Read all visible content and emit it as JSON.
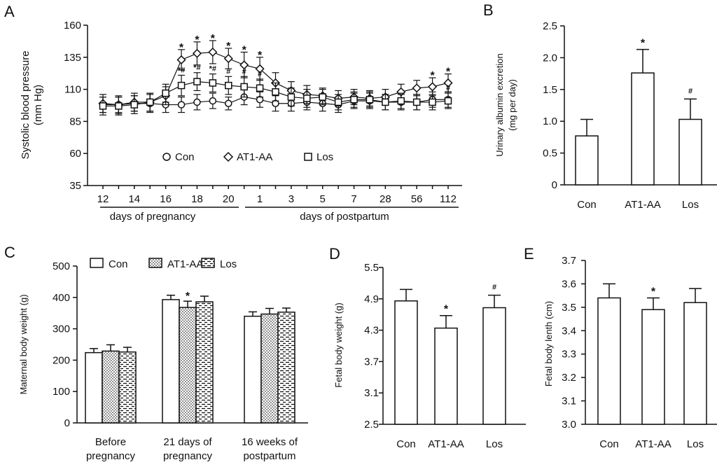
{
  "chart_data": [
    {
      "panel": "A",
      "type": "line",
      "ylabel": "Systolic blood pressure (mm Hg)",
      "ylabel_lines": [
        "Systolic blood pressure",
        "(mm Hg)"
      ],
      "ylim": [
        35,
        160
      ],
      "yticks": [
        35,
        60,
        85,
        110,
        135,
        160
      ],
      "categories": [
        "12",
        "13",
        "14",
        "15",
        "16",
        "17",
        "18",
        "19",
        "20",
        "21",
        "1",
        "2",
        "3",
        "4",
        "5",
        "6",
        "7",
        "14",
        "28",
        "42",
        "56",
        "84",
        "112"
      ],
      "tick_labels": [
        "12",
        "14",
        "16",
        "18",
        "20",
        "1",
        "3",
        "5",
        "7",
        "28",
        "56",
        "112"
      ],
      "group_labels": [
        "days of pregnancy",
        "days of postpartum"
      ],
      "series": [
        {
          "name": "Con",
          "marker": "circle",
          "values": [
            98,
            98,
            99,
            99,
            98,
            98,
            100,
            101,
            99,
            104,
            102,
            99,
            99,
            100,
            99,
            98,
            101,
            101,
            100,
            100,
            100,
            102,
            102
          ],
          "errors": [
            6,
            6,
            6,
            7,
            6,
            6,
            6,
            6,
            5,
            6,
            6,
            6,
            6,
            6,
            6,
            6,
            6,
            6,
            6,
            6,
            6,
            6,
            6
          ]
        },
        {
          "name": "AT1-AA",
          "marker": "diamond",
          "values": [
            99,
            98,
            100,
            100,
            105,
            133,
            138,
            139,
            134,
            129,
            126,
            115,
            109,
            106,
            105,
            103,
            104,
            103,
            104,
            108,
            111,
            112,
            115
          ],
          "errors": [
            7,
            7,
            7,
            7,
            7,
            8,
            9,
            9,
            8,
            10,
            9,
            8,
            7,
            7,
            6,
            6,
            6,
            6,
            6,
            6,
            6,
            7,
            7
          ]
        },
        {
          "name": "Los",
          "marker": "square",
          "values": [
            97,
            97,
            98,
            100,
            107,
            113,
            116,
            115,
            113,
            112,
            111,
            108,
            104,
            103,
            104,
            100,
            102,
            102,
            100,
            101,
            100,
            100,
            101
          ],
          "errors": [
            7,
            7,
            7,
            7,
            7,
            8,
            7,
            7,
            7,
            8,
            7,
            7,
            7,
            7,
            6,
            6,
            6,
            6,
            6,
            6,
            6,
            6,
            6
          ]
        }
      ],
      "annotations": [
        {
          "series": "AT1-AA",
          "index": 5,
          "text": "*"
        },
        {
          "series": "AT1-AA",
          "index": 6,
          "text": "*"
        },
        {
          "series": "AT1-AA",
          "index": 7,
          "text": "*"
        },
        {
          "series": "AT1-AA",
          "index": 8,
          "text": "*"
        },
        {
          "series": "AT1-AA",
          "index": 9,
          "text": "*"
        },
        {
          "series": "AT1-AA",
          "index": 10,
          "text": "*"
        },
        {
          "series": "AT1-AA",
          "index": 21,
          "text": "*"
        },
        {
          "series": "AT1-AA",
          "index": 22,
          "text": "*"
        },
        {
          "series": "Los",
          "index": 5,
          "text": "*#"
        },
        {
          "series": "Los",
          "index": 6,
          "text": "*#"
        },
        {
          "series": "Los",
          "index": 7,
          "text": "*#"
        },
        {
          "series": "Los",
          "index": 8,
          "text": "#"
        },
        {
          "series": "Los",
          "index": 9,
          "text": "#"
        },
        {
          "series": "Los",
          "index": 10,
          "text": "#"
        },
        {
          "series": "Los",
          "index": 22,
          "text": "#"
        }
      ],
      "legend": [
        "Con",
        "AT1-AA",
        "Los"
      ]
    },
    {
      "panel": "B",
      "type": "bar",
      "ylabel": "Urinary albumin excretion (mg per day)",
      "ylabel_lines": [
        "Urinary albumin excretion",
        "(mg per day)"
      ],
      "ylim": [
        0,
        2.5
      ],
      "yticks": [
        "0",
        "0.5",
        "1.0",
        "1.5",
        "2.0",
        "2.5"
      ],
      "categories": [
        "Con",
        "AT1-AA",
        "Los"
      ],
      "values": [
        0.77,
        1.76,
        1.03
      ],
      "errors": [
        0.26,
        0.37,
        0.32
      ],
      "annotations": [
        "",
        "*",
        "#"
      ]
    },
    {
      "panel": "C",
      "type": "bar",
      "ylabel": "Maternal  body weight (g)",
      "ylim": [
        0,
        500
      ],
      "yticks": [
        "0",
        "100",
        "200",
        "300",
        "400",
        "500"
      ],
      "categories": [
        [
          "Before",
          "pregnancy"
        ],
        [
          "21 days of",
          "pregnancy"
        ],
        [
          "16 weeks of",
          "postpartum"
        ]
      ],
      "series": [
        {
          "name": "Con",
          "pattern": "plain",
          "values": [
            224,
            393,
            340
          ],
          "errors": [
            13,
            14,
            14
          ]
        },
        {
          "name": "AT1-AA",
          "pattern": "dots",
          "values": [
            229,
            368,
            347
          ],
          "errors": [
            20,
            20,
            18
          ]
        },
        {
          "name": "Los",
          "pattern": "dashes",
          "values": [
            226,
            386,
            353
          ],
          "errors": [
            15,
            18,
            13
          ]
        }
      ],
      "annotations": [
        {
          "category": 1,
          "series": 1,
          "text": "*"
        }
      ],
      "legend": [
        "Con",
        "AT1-AA",
        "Los"
      ]
    },
    {
      "panel": "D",
      "type": "bar",
      "ylabel": "Fetal body weight (g)",
      "ylim": [
        2.5,
        5.5
      ],
      "yticks": [
        "2.5",
        "3.1",
        "3.7",
        "4.3",
        "4.9",
        "5.5"
      ],
      "categories": [
        "Con",
        "AT1-AA",
        "Los"
      ],
      "values": [
        4.86,
        4.34,
        4.73
      ],
      "errors": [
        0.22,
        0.24,
        0.24
      ],
      "annotations": [
        "",
        "*",
        "#"
      ]
    },
    {
      "panel": "E",
      "type": "bar",
      "ylabel": "Fetal body lenth (cm)",
      "ylim": [
        3.0,
        3.7
      ],
      "yticks": [
        "3.0",
        "3.1",
        "3.2",
        "3.3",
        "3.4",
        "3.5",
        "3.6",
        "3.7"
      ],
      "categories": [
        "Con",
        "AT1-AA",
        "Los"
      ],
      "values": [
        3.54,
        3.49,
        3.52
      ],
      "errors": [
        0.06,
        0.05,
        0.06
      ],
      "annotations": [
        "",
        "*",
        ""
      ]
    }
  ]
}
